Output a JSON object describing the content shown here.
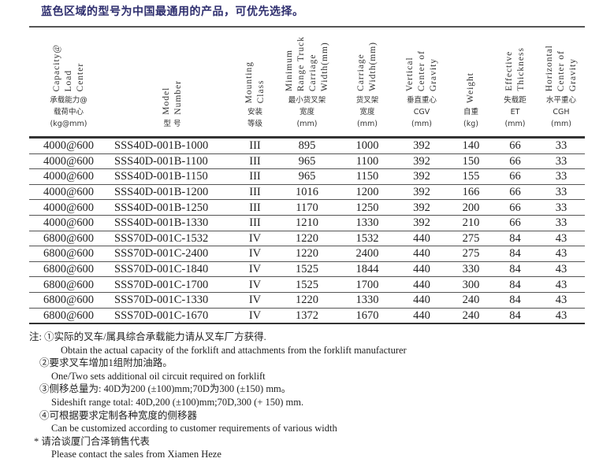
{
  "title": "蓝色区域的型号为中国最通用的产品，可优先选择。",
  "headers": [
    {
      "en": [
        "Capacity@",
        "Load",
        "Center"
      ],
      "zh": [
        "承载能力@",
        "载荷中心",
        "(kg@mm)"
      ]
    },
    {
      "en": [
        "Model",
        "Number"
      ],
      "zh": [
        "型 号"
      ]
    },
    {
      "en": [
        "Mounting",
        "Class"
      ],
      "zh": [
        "安装",
        "等级"
      ]
    },
    {
      "en": [
        "Minimum",
        "Range Truck",
        "Carriage",
        "Width(mm)"
      ],
      "zh": [
        "最小货叉架",
        "宽度",
        "(mm)"
      ]
    },
    {
      "en": [
        "Carriage",
        "Width(mm)"
      ],
      "zh": [
        "货叉架",
        "宽度",
        "(mm)"
      ]
    },
    {
      "en": [
        "Vertical",
        "Center of",
        "Gravity"
      ],
      "zh": [
        "垂直重心",
        "CGV",
        "(mm)"
      ]
    },
    {
      "en": [
        "Weight"
      ],
      "zh": [
        "自重",
        "(kg)"
      ]
    },
    {
      "en": [
        "Effective",
        "Thickness"
      ],
      "zh": [
        "失载距",
        "ET",
        "(mm)"
      ]
    },
    {
      "en": [
        "Horizontal",
        "Center of",
        "Gravity"
      ],
      "zh": [
        "水平重心",
        "CGH",
        "(mm)"
      ]
    }
  ],
  "rows": [
    [
      "4000@600",
      "SSS40D-001B-1000",
      "III",
      "895",
      "1000",
      "392",
      "140",
      "66",
      "33"
    ],
    [
      "4000@600",
      "SSS40D-001B-1100",
      "III",
      "965",
      "1100",
      "392",
      "150",
      "66",
      "33"
    ],
    [
      "4000@600",
      "SSS40D-001B-1150",
      "III",
      "965",
      "1150",
      "392",
      "155",
      "66",
      "33"
    ],
    [
      "4000@600",
      "SSS40D-001B-1200",
      "III",
      "1016",
      "1200",
      "392",
      "166",
      "66",
      "33"
    ],
    [
      "4000@600",
      "SSS40D-001B-1250",
      "III",
      "1170",
      "1250",
      "392",
      "200",
      "66",
      "33"
    ],
    [
      "4000@600",
      "SSS40D-001B-1330",
      "III",
      "1210",
      "1330",
      "392",
      "210",
      "66",
      "33"
    ],
    [
      "6800@600",
      "SSS70D-001C-1532",
      "IV",
      "1220",
      "1532",
      "440",
      "275",
      "84",
      "43"
    ],
    [
      "6800@600",
      "SSS70D-001C-2400",
      "IV",
      "1220",
      "2400",
      "440",
      "275",
      "84",
      "43"
    ],
    [
      "6800@600",
      "SSS70D-001C-1840",
      "IV",
      "1525",
      "1844",
      "440",
      "330",
      "84",
      "43"
    ],
    [
      "6800@600",
      "SSS70D-001C-1700",
      "IV",
      "1525",
      "1700",
      "440",
      "300",
      "84",
      "43"
    ],
    [
      "6800@600",
      "SSS70D-001C-1330",
      "IV",
      "1220",
      "1330",
      "440",
      "240",
      "84",
      "43"
    ],
    [
      "6800@600",
      "SSS70D-001C-1670",
      "IV",
      "1372",
      "1670",
      "440",
      "240",
      "84",
      "43"
    ]
  ],
  "notes": [
    "注: ①实际的叉车/属具综合承载能力请从叉车厂方获得.",
    "Obtain the actual capacity of the forklift and attachments from the forklift manufacturer",
    "②要求叉车增加1组附加油路。",
    "One/Two sets additional oil circuit required on forklift",
    "③侧移总量为:  40D为200 (±100)mm;70D为300 (±150) mm。",
    "Sideshift range total: 40D,200 (±100)mm;70D,300 (+ 150) mm.",
    "④可根据要求定制各种宽度的侧移器",
    "Can be customized according to customer requirements of various width",
    "* 请洽谈厦门合泽销售代表",
    "Please contact the sales from Xiamen Heze"
  ]
}
